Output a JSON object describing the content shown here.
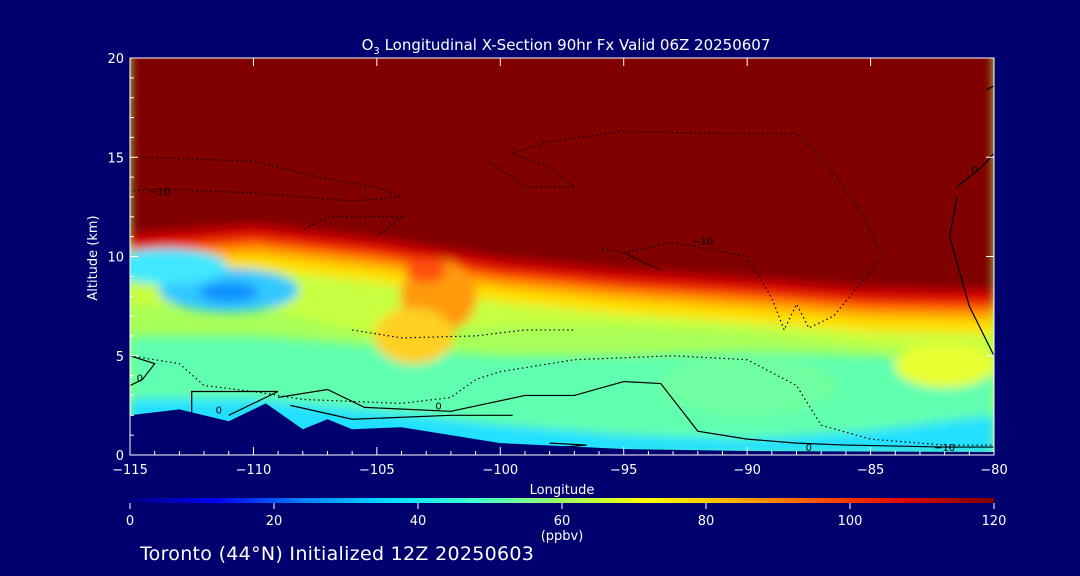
{
  "chart_data": {
    "type": "heatmap",
    "title_prefix": "O",
    "title_subscript": "3",
    "title_rest": " Longitudinal X-Section 90hr  Fx Valid 06Z 20250607",
    "xlabel": "Longitude",
    "ylabel": "Altitude (km)",
    "xlim": [
      -115,
      -80
    ],
    "ylim": [
      0,
      20
    ],
    "x_ticks": [
      -115,
      -110,
      -105,
      -100,
      -95,
      -90,
      -85,
      -80
    ],
    "x_tick_labels": [
      "−115",
      "−110",
      "−105",
      "−100",
      "−95",
      "−90",
      "−85",
      "−80"
    ],
    "y_ticks": [
      0,
      5,
      10,
      15,
      20
    ],
    "y_tick_labels": [
      "0",
      "5",
      "10",
      "15",
      "20"
    ],
    "colorbar": {
      "min": 0,
      "max": 120,
      "ticks": [
        0,
        20,
        40,
        60,
        80,
        100,
        120
      ],
      "tick_labels": [
        "0",
        "20",
        "40",
        "60",
        "80",
        "100",
        "120"
      ],
      "unit": "(ppbv)",
      "colors": [
        "#000080",
        "#0000ff",
        "#0080ff",
        "#00e0ff",
        "#40ffd0",
        "#a0ff60",
        "#ffff00",
        "#ffb000",
        "#ff5000",
        "#e00000",
        "#800000"
      ]
    },
    "tropopause_altitude_km": [
      {
        "lon": -115,
        "alt": 11.0
      },
      {
        "lon": -110,
        "alt": 11.5
      },
      {
        "lon": -105,
        "alt": 10.8
      },
      {
        "lon": -100,
        "alt": 9.8
      },
      {
        "lon": -95,
        "alt": 9.2
      },
      {
        "lon": -90,
        "alt": 8.8
      },
      {
        "lon": -85,
        "alt": 8.3
      },
      {
        "lon": -80,
        "alt": 8.2
      }
    ],
    "terrain_altitude_km": [
      {
        "lon": -115,
        "alt": 2.0
      },
      {
        "lon": -113,
        "alt": 2.3
      },
      {
        "lon": -111,
        "alt": 1.7
      },
      {
        "lon": -109.5,
        "alt": 2.6
      },
      {
        "lon": -108,
        "alt": 1.3
      },
      {
        "lon": -107,
        "alt": 1.8
      },
      {
        "lon": -106,
        "alt": 1.3
      },
      {
        "lon": -104,
        "alt": 1.4
      },
      {
        "lon": -100,
        "alt": 0.6
      },
      {
        "lon": -95,
        "alt": 0.3
      },
      {
        "lon": -90,
        "alt": 0.2
      },
      {
        "lon": -80,
        "alt": 0.15
      }
    ],
    "contour_labels": [
      {
        "text": "−10",
        "lon": -113.8,
        "alt": 13.3
      },
      {
        "text": "−10",
        "lon": -91.8,
        "alt": 10.8
      },
      {
        "text": "−10",
        "lon": -82.0,
        "alt": 0.4
      },
      {
        "text": "0",
        "lon": -114.6,
        "alt": 3.9
      },
      {
        "text": "0",
        "lon": -111.4,
        "alt": 2.3
      },
      {
        "text": "0",
        "lon": -102.5,
        "alt": 2.5
      },
      {
        "text": "0",
        "lon": -87.5,
        "alt": 0.4
      },
      {
        "text": "0",
        "lon": -80.8,
        "alt": 14.4
      }
    ]
  },
  "footer": "Toronto (44°N) Initialized 12Z 20250603"
}
